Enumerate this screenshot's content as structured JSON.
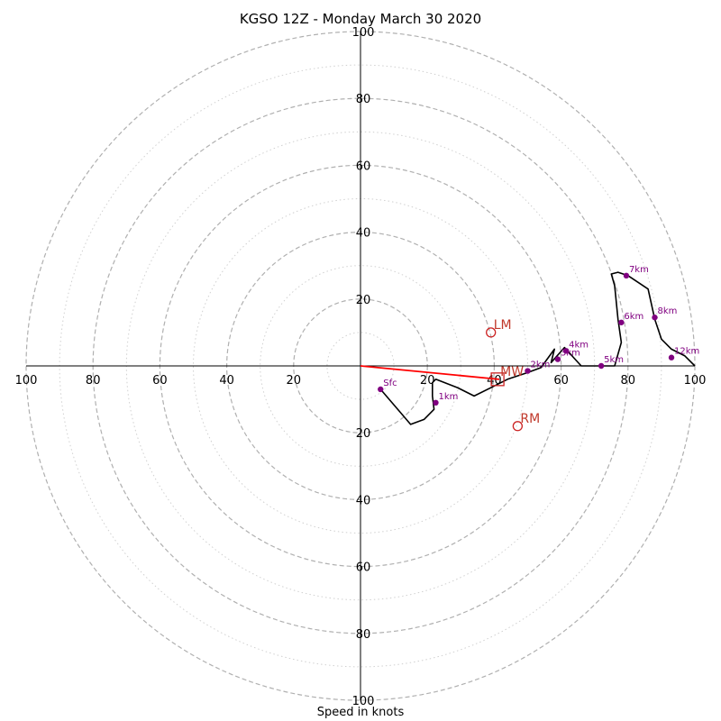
{
  "title": "KGSO 12Z - Monday March 30 2020",
  "xlabel": "Speed in knots",
  "colors": {
    "hodograph": "#000000",
    "height_markers": "#800080",
    "storm_motion": "#cc2222",
    "shear_vector": "#ff0000",
    "major_rings": "#b0b0b0",
    "minor_rings": "#d0d0d0"
  },
  "chart_data": {
    "type": "scatter",
    "title": "KGSO 12Z - Monday March 30 2020",
    "xlabel": "Speed in knots",
    "xlim": [
      -100,
      100
    ],
    "ylim": [
      -100,
      100
    ],
    "ring_major_step": 20,
    "ring_minor_step": 10,
    "x_tick_labels": [
      "100",
      "80",
      "60",
      "40",
      "20",
      "20",
      "40",
      "60",
      "80",
      "100"
    ],
    "y_tick_labels": [
      "100",
      "80",
      "60",
      "40",
      "20",
      "20",
      "40",
      "60",
      "80",
      "100"
    ],
    "hodograph": [
      [
        6,
        -7
      ],
      [
        12,
        -14
      ],
      [
        15,
        -17.5
      ],
      [
        19,
        -16
      ],
      [
        22,
        -13
      ],
      [
        21.5,
        -9
      ],
      [
        21.5,
        -5
      ],
      [
        22.5,
        -4
      ],
      [
        29,
        -6.5
      ],
      [
        34,
        -9
      ],
      [
        40,
        -6
      ],
      [
        44,
        -4
      ],
      [
        50,
        -2
      ],
      [
        54,
        -0.5
      ],
      [
        58,
        5
      ],
      [
        57,
        1
      ],
      [
        61,
        5.5
      ],
      [
        66,
        0
      ],
      [
        72,
        0
      ],
      [
        76,
        0
      ],
      [
        78,
        7
      ],
      [
        77,
        14
      ],
      [
        76,
        24
      ],
      [
        75,
        27.5
      ],
      [
        77,
        28
      ],
      [
        80,
        27
      ],
      [
        86,
        23
      ],
      [
        88,
        14
      ],
      [
        90,
        8
      ],
      [
        93,
        5
      ],
      [
        97,
        3
      ],
      [
        100,
        0
      ]
    ],
    "height_markers": [
      {
        "label": "Sfc",
        "x": 6,
        "y": -7
      },
      {
        "label": "1km",
        "x": 22.5,
        "y": -11
      },
      {
        "label": "2km",
        "x": 50,
        "y": -1.5
      },
      {
        "label": "3km",
        "x": 59,
        "y": 2
      },
      {
        "label": "4km",
        "x": 61.5,
        "y": 4.5
      },
      {
        "label": "5km",
        "x": 72,
        "y": 0
      },
      {
        "label": "6km",
        "x": 78,
        "y": 13
      },
      {
        "label": "7km",
        "x": 79.5,
        "y": 27
      },
      {
        "label": "8km",
        "x": 88,
        "y": 14.5
      },
      {
        "label": "12km",
        "x": 93,
        "y": 2.5
      }
    ],
    "storm_motions": [
      {
        "label": "LM",
        "x": 39,
        "y": 10
      },
      {
        "label": "MW",
        "x": 41,
        "y": -4
      },
      {
        "label": "RM",
        "x": 47,
        "y": -18
      }
    ],
    "shear_vector": {
      "from": [
        0,
        0
      ],
      "to": [
        41.5,
        -4
      ]
    }
  }
}
